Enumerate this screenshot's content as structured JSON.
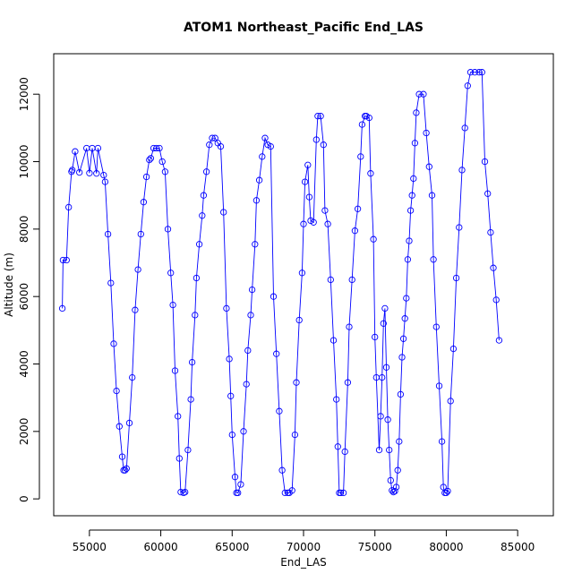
{
  "chart_data": {
    "type": "line",
    "title": "ATOM1 Northeast_Pacific End_LAS",
    "xlabel": "End_LAS",
    "ylabel": "Altitude (m)",
    "xlim": [
      52500,
      87500
    ],
    "ylim": [
      -500,
      13200
    ],
    "xticks": [
      55000,
      60000,
      65000,
      70000,
      75000,
      80000,
      85000
    ],
    "xtick_labels": [
      "55000",
      "60000",
      "65000",
      "70000",
      "75000",
      "80000",
      "85000"
    ],
    "yticks": [
      0,
      2000,
      4000,
      6000,
      8000,
      10000,
      12000
    ],
    "ytick_labels": [
      "0",
      "2000",
      "4000",
      "6000",
      "8000",
      "10000",
      "12000"
    ],
    "series": [
      {
        "name": "Altitude",
        "color": "#0000ff",
        "marker": "open-circle",
        "points": [
          [
            53100,
            5650
          ],
          [
            53150,
            7080
          ],
          [
            53400,
            7080
          ],
          [
            53550,
            8650
          ],
          [
            53750,
            9700
          ],
          [
            53800,
            9750
          ],
          [
            54000,
            10300
          ],
          [
            54300,
            9680
          ],
          [
            54800,
            10400
          ],
          [
            55000,
            9660
          ],
          [
            55200,
            10400
          ],
          [
            55500,
            9650
          ],
          [
            55600,
            10400
          ],
          [
            56000,
            9600
          ],
          [
            56100,
            9400
          ],
          [
            56300,
            7850
          ],
          [
            56500,
            6400
          ],
          [
            56700,
            4600
          ],
          [
            56900,
            3200
          ],
          [
            57100,
            2150
          ],
          [
            57300,
            1250
          ],
          [
            57400,
            850
          ],
          [
            57500,
            850
          ],
          [
            57600,
            900
          ],
          [
            57800,
            2250
          ],
          [
            58000,
            3600
          ],
          [
            58200,
            5600
          ],
          [
            58400,
            6800
          ],
          [
            58600,
            7850
          ],
          [
            58800,
            8800
          ],
          [
            59000,
            9550
          ],
          [
            59200,
            10050
          ],
          [
            59300,
            10100
          ],
          [
            59500,
            10400
          ],
          [
            59700,
            10400
          ],
          [
            59900,
            10400
          ],
          [
            60100,
            10000
          ],
          [
            60300,
            9700
          ],
          [
            60500,
            8000
          ],
          [
            60700,
            6700
          ],
          [
            60850,
            5750
          ],
          [
            61000,
            3800
          ],
          [
            61200,
            2450
          ],
          [
            61300,
            1200
          ],
          [
            61400,
            200
          ],
          [
            61600,
            180
          ],
          [
            61700,
            200
          ],
          [
            61900,
            1450
          ],
          [
            62100,
            2950
          ],
          [
            62200,
            4050
          ],
          [
            62400,
            5450
          ],
          [
            62500,
            6550
          ],
          [
            62700,
            7550
          ],
          [
            62900,
            8400
          ],
          [
            63000,
            9000
          ],
          [
            63200,
            9700
          ],
          [
            63400,
            10500
          ],
          [
            63600,
            10700
          ],
          [
            63800,
            10700
          ],
          [
            64000,
            10550
          ],
          [
            64200,
            10450
          ],
          [
            64400,
            8500
          ],
          [
            64600,
            5650
          ],
          [
            64800,
            4150
          ],
          [
            64900,
            3050
          ],
          [
            65000,
            1900
          ],
          [
            65200,
            650
          ],
          [
            65300,
            180
          ],
          [
            65400,
            180
          ],
          [
            65600,
            430
          ],
          [
            65800,
            2000
          ],
          [
            66000,
            3400
          ],
          [
            66100,
            4400
          ],
          [
            66300,
            5450
          ],
          [
            66400,
            6200
          ],
          [
            66600,
            7550
          ],
          [
            66700,
            8850
          ],
          [
            66900,
            9450
          ],
          [
            67100,
            10150
          ],
          [
            67300,
            10700
          ],
          [
            67500,
            10500
          ],
          [
            67700,
            10450
          ],
          [
            67900,
            6000
          ],
          [
            68100,
            4300
          ],
          [
            68300,
            2600
          ],
          [
            68500,
            850
          ],
          [
            68700,
            180
          ],
          [
            68900,
            180
          ],
          [
            69000,
            180
          ],
          [
            69200,
            250
          ],
          [
            69400,
            1900
          ],
          [
            69500,
            3450
          ],
          [
            69700,
            5300
          ],
          [
            69900,
            6700
          ],
          [
            70000,
            8150
          ],
          [
            70100,
            9400
          ],
          [
            70300,
            9900
          ],
          [
            70400,
            8950
          ],
          [
            70500,
            8250
          ],
          [
            70700,
            8200
          ],
          [
            70900,
            10650
          ],
          [
            71000,
            11350
          ],
          [
            71200,
            11350
          ],
          [
            71400,
            10500
          ],
          [
            71500,
            8550
          ],
          [
            71700,
            8150
          ],
          [
            71900,
            6500
          ],
          [
            72100,
            4700
          ],
          [
            72300,
            2950
          ],
          [
            72400,
            1550
          ],
          [
            72500,
            180
          ],
          [
            72600,
            180
          ],
          [
            72800,
            180
          ],
          [
            72900,
            1400
          ],
          [
            73100,
            3450
          ],
          [
            73200,
            5100
          ],
          [
            73400,
            6500
          ],
          [
            73600,
            7950
          ],
          [
            73800,
            8600
          ],
          [
            74000,
            10150
          ],
          [
            74100,
            11100
          ],
          [
            74300,
            11350
          ],
          [
            74400,
            11350
          ],
          [
            74600,
            11300
          ],
          [
            74700,
            9650
          ],
          [
            74900,
            7700
          ],
          [
            75000,
            4800
          ],
          [
            75100,
            3600
          ],
          [
            75300,
            1450
          ],
          [
            75400,
            2450
          ],
          [
            75500,
            3600
          ],
          [
            75600,
            5200
          ],
          [
            75700,
            5650
          ],
          [
            75800,
            3900
          ],
          [
            75900,
            2350
          ],
          [
            76000,
            1450
          ],
          [
            76100,
            550
          ],
          [
            76200,
            250
          ],
          [
            76300,
            200
          ],
          [
            76400,
            230
          ],
          [
            76500,
            350
          ],
          [
            76600,
            850
          ],
          [
            76700,
            1700
          ],
          [
            76800,
            3100
          ],
          [
            76900,
            4200
          ],
          [
            77000,
            4750
          ],
          [
            77100,
            5350
          ],
          [
            77200,
            5950
          ],
          [
            77300,
            7100
          ],
          [
            77400,
            7650
          ],
          [
            77500,
            8550
          ],
          [
            77600,
            9000
          ],
          [
            77700,
            9500
          ],
          [
            77800,
            10550
          ],
          [
            77900,
            11450
          ],
          [
            78100,
            12000
          ],
          [
            78400,
            12000
          ],
          [
            78600,
            10850
          ],
          [
            78800,
            9850
          ],
          [
            79000,
            9000
          ],
          [
            79100,
            7100
          ],
          [
            79300,
            5100
          ],
          [
            79500,
            3350
          ],
          [
            79700,
            1700
          ],
          [
            79800,
            350
          ],
          [
            79900,
            180
          ],
          [
            80000,
            180
          ],
          [
            80100,
            230
          ],
          [
            80300,
            2900
          ],
          [
            80500,
            4450
          ],
          [
            80700,
            6550
          ],
          [
            80900,
            8050
          ],
          [
            81100,
            9750
          ],
          [
            81300,
            11000
          ],
          [
            81500,
            12250
          ],
          [
            81700,
            12650
          ],
          [
            82000,
            12650
          ],
          [
            82300,
            12650
          ],
          [
            82500,
            12650
          ],
          [
            82700,
            10000
          ],
          [
            82900,
            9050
          ],
          [
            83100,
            7900
          ],
          [
            83300,
            6850
          ],
          [
            83500,
            5900
          ],
          [
            83700,
            4700
          ]
        ]
      }
    ]
  }
}
